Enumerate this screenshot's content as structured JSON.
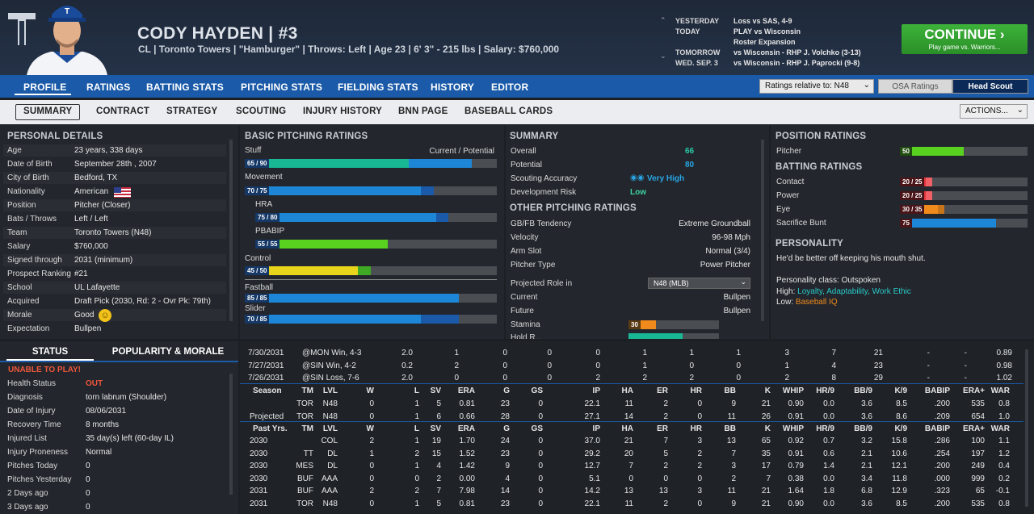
{
  "header": {
    "name": "CODY HAYDEN  |  #3",
    "info": "CL | Toronto Towers  |  \"Hamburger\" | Throws: Left  |  Age 23  |  6' 3\" - 215 lbs  |  Salary: $760,000",
    "schedule": [
      {
        "label": "YESTERDAY",
        "value": "Loss vs SAS, 4-9"
      },
      {
        "label": "TODAY",
        "value": "PLAY vs Wisconsin"
      },
      {
        "label": "",
        "value": "Roster Expansion"
      },
      {
        "label": "TOMORROW",
        "value": "vs Wisconsin - RHP J. Volchko (3-13)"
      },
      {
        "label": "WED. SEP. 3",
        "value": "vs Wisconsin - RHP J. Paprocki (9-8)"
      }
    ],
    "continue_label": "CONTINUE",
    "continue_sub": "Play game vs. Warriors..."
  },
  "tabs": [
    "PROFILE",
    "RATINGS",
    "BATTING STATS",
    "PITCHING STATS",
    "FIELDING STATS",
    "HISTORY",
    "EDITOR"
  ],
  "ratings_relative": "Ratings relative to: N48",
  "osa_ratings": "OSA Ratings",
  "head_scout": "Head Scout",
  "subtabs": [
    "SUMMARY",
    "CONTRACT",
    "STRATEGY",
    "SCOUTING",
    "INJURY HISTORY",
    "BNN PAGE",
    "BASEBALL CARDS"
  ],
  "actions": "ACTIONS...",
  "personal": {
    "title": "PERSONAL DETAILS",
    "rows": [
      [
        "Age",
        "23 years, 338 days"
      ],
      [
        "Date of Birth",
        "September 28th , 2007"
      ],
      [
        "City of Birth",
        "Bedford, TX"
      ],
      [
        "Nationality",
        "American"
      ],
      [
        "Position",
        "Pitcher (Closer)"
      ],
      [
        "Bats / Throws",
        "Left / Left"
      ],
      [
        "Team",
        "Toronto Towers (N48)"
      ],
      [
        "Salary",
        "$760,000"
      ],
      [
        "Signed through",
        "2031 (minimum)"
      ],
      [
        "Prospect Ranking",
        "#21"
      ],
      [
        "School",
        "UL Lafayette"
      ],
      [
        "Acquired",
        "Draft Pick (2030, Rd: 2 - Ovr Pk: 79th)"
      ],
      [
        "Morale",
        "Good"
      ],
      [
        "Expectation",
        "Bullpen"
      ]
    ]
  },
  "pitching": {
    "title": "BASIC PITCHING RATINGS",
    "current_potential": "Current / Potential",
    "items": [
      {
        "label": "Stuff",
        "text": "65 / 90",
        "cur": 65,
        "pot": 90,
        "color": "#18b894",
        "potcolor": "#1e86d6"
      },
      {
        "label": "Movement",
        "text": "70 / 75",
        "cur": 70,
        "pot": 75,
        "color": "#1e86d6",
        "potcolor": "#1a5aa8"
      },
      {
        "label": "HRA",
        "text": "75 / 80",
        "cur": 75,
        "pot": 80,
        "color": "#1e86d6",
        "potcolor": "#1a5aa8"
      },
      {
        "label": "PBABIP",
        "text": "55 / 55",
        "cur": 55,
        "pot": 55,
        "color": "#58d21e",
        "potcolor": "#58d21e"
      },
      {
        "label": "Control",
        "text": "45 / 50",
        "cur": 45,
        "pot": 50,
        "color": "#e8d41a",
        "potcolor": "#3fa824"
      },
      {
        "label": "Fastball",
        "text": "85 / 85",
        "cur": 85,
        "pot": 85,
        "color": "#1e86d6",
        "potcolor": "#1e86d6"
      },
      {
        "label": "Slider",
        "text": "70 / 85",
        "cur": 70,
        "pot": 85,
        "color": "#1e86d6",
        "potcolor": "#1a5aa8"
      }
    ]
  },
  "summary": {
    "title": "SUMMARY",
    "overall_label": "Overall",
    "overall": "66",
    "potential_label": "Potential",
    "potential": "80",
    "scout_label": "Scouting Accuracy",
    "scout": "Very High",
    "risk_label": "Development Risk",
    "risk": "Low",
    "other_title": "OTHER PITCHING RATINGS",
    "other": [
      [
        "GB/FB Tendency",
        "Extreme Groundball"
      ],
      [
        "Velocity",
        "96-98 Mph"
      ],
      [
        "Arm Slot",
        "Normal (3/4)"
      ],
      [
        "Pitcher Type",
        "Power Pitcher"
      ]
    ],
    "role_label": "Projected Role in",
    "role_select": "N48 (MLB)",
    "current_label": "Current",
    "current": "Bullpen",
    "future_label": "Future",
    "future": "Bullpen",
    "stamina_label": "Stamina",
    "stamina": "30",
    "stamina_val": 30,
    "hold_label": "Hold R..."
  },
  "position": {
    "title": "POSITION RATINGS",
    "pitcher_label": "Pitcher",
    "pitcher": "50",
    "pitcher_val": 50,
    "batting_title": "BATTING RATINGS",
    "batting": [
      {
        "label": "Contact",
        "text": "20 / 25",
        "cur": 20,
        "pot": 25,
        "color": "#e0343a",
        "potcolor": "#f06066"
      },
      {
        "label": "Power",
        "text": "20 / 25",
        "cur": 20,
        "pot": 25,
        "color": "#e0343a",
        "potcolor": "#f06066"
      },
      {
        "label": "Eye",
        "text": "30 / 35",
        "cur": 30,
        "pot": 35,
        "color": "#f08a1c",
        "potcolor": "#c77518"
      },
      {
        "label": "Sacrifice Bunt",
        "text": "75",
        "cur": 75,
        "pot": 75,
        "color": "#1e86d6",
        "potcolor": "#1e86d6"
      }
    ],
    "personality_title": "PERSONALITY",
    "quote": "He'd be better off keeping his mouth shut.",
    "class_line": "Personality class: Outspoken",
    "high_label": "High:",
    "high_values": [
      "Loyalty",
      "Adaptability",
      "Work Ethic"
    ],
    "low_label": "Low:",
    "low_value": "Baseball IQ"
  },
  "status": {
    "tab_status": "STATUS",
    "tab_pop": "POPULARITY & MORALE",
    "unable": "UNABLE TO PLAY!",
    "rows": [
      [
        "Health Status",
        "OUT"
      ],
      [
        "Diagnosis",
        "torn labrum (Shoulder)"
      ],
      [
        "Date of Injury",
        "08/06/2031"
      ],
      [
        "Recovery Time",
        "8 months"
      ],
      [
        "Injured List",
        "35 day(s) left (60-day IL)"
      ],
      [
        "Injury Proneness",
        "Normal"
      ],
      [
        "Pitches Today",
        "0"
      ],
      [
        "Pitches Yesterday",
        "0"
      ],
      [
        "2 Days ago",
        "0"
      ],
      [
        "3 Days ago",
        "0"
      ]
    ]
  },
  "stats": {
    "game_log": [
      [
        "7/30/2031",
        "@MON Win, 4-3",
        "2.0",
        "1",
        "0",
        "0",
        "0",
        "1",
        "1",
        "1",
        "3",
        "7",
        "21",
        "-",
        "-",
        "0.89"
      ],
      [
        "7/27/2031",
        "@SIN Win, 4-2",
        "0.2",
        "2",
        "0",
        "0",
        "0",
        "1",
        "0",
        "0",
        "1",
        "4",
        "23",
        "-",
        "-",
        "0.98"
      ],
      [
        "7/26/2031",
        "@SIN Loss, 7-6",
        "2.0",
        "0",
        "0",
        "0",
        "2",
        "2",
        "2",
        "0",
        "2",
        "8",
        "29",
        "-",
        "-",
        "1.02"
      ]
    ],
    "cols": [
      "TM",
      "LVL",
      "W",
      "L",
      "SV",
      "ERA",
      "G",
      "GS",
      "IP",
      "HA",
      "ER",
      "HR",
      "BB",
      "K",
      "WHIP",
      "HR/9",
      "BB/9",
      "K/9",
      "BABIP",
      "ERA+",
      "WAR"
    ],
    "season_label": "Season",
    "season_rows": [
      {
        "label": "",
        "vals": [
          "TOR",
          "N48",
          "0",
          "1",
          "5",
          "0.81",
          "23",
          "0",
          "22.1",
          "11",
          "2",
          "0",
          "9",
          "21",
          "0.90",
          "0.0",
          "3.6",
          "8.5",
          ".200",
          "535",
          "0.8"
        ]
      },
      {
        "label": "Projected",
        "vals": [
          "TOR",
          "N48",
          "0",
          "1",
          "6",
          "0.66",
          "28",
          "0",
          "27.1",
          "14",
          "2",
          "0",
          "11",
          "26",
          "0.91",
          "0.0",
          "3.6",
          "8.6",
          ".209",
          "654",
          "1.0"
        ]
      }
    ],
    "past_label": "Past Yrs.",
    "past_rows": [
      {
        "label": "2030",
        "vals": [
          "",
          "COL",
          "2",
          "1",
          "19",
          "1.70",
          "24",
          "0",
          "37.0",
          "21",
          "7",
          "3",
          "13",
          "65",
          "0.92",
          "0.7",
          "3.2",
          "15.8",
          ".286",
          "100",
          "1.1"
        ]
      },
      {
        "label": "2030",
        "vals": [
          "TT",
          "DL",
          "1",
          "2",
          "15",
          "1.52",
          "23",
          "0",
          "29.2",
          "20",
          "5",
          "2",
          "7",
          "35",
          "0.91",
          "0.6",
          "2.1",
          "10.6",
          ".254",
          "197",
          "1.2"
        ]
      },
      {
        "label": "2030",
        "vals": [
          "MES",
          "DL",
          "0",
          "1",
          "4",
          "1.42",
          "9",
          "0",
          "12.7",
          "7",
          "2",
          "2",
          "3",
          "17",
          "0.79",
          "1.4",
          "2.1",
          "12.1",
          ".200",
          "249",
          "0.4"
        ]
      },
      {
        "label": "2030",
        "vals": [
          "BUF",
          "AAA",
          "0",
          "0",
          "2",
          "0.00",
          "4",
          "0",
          "5.1",
          "0",
          "0",
          "0",
          "2",
          "7",
          "0.38",
          "0.0",
          "3.4",
          "11.8",
          ".000",
          "999",
          "0.2"
        ]
      },
      {
        "label": "2031",
        "vals": [
          "BUF",
          "AAA",
          "2",
          "2",
          "7",
          "7.98",
          "14",
          "0",
          "14.2",
          "13",
          "13",
          "3",
          "11",
          "21",
          "1.64",
          "1.8",
          "6.8",
          "12.9",
          ".323",
          "65",
          "-0.1"
        ]
      },
      {
        "label": "2031",
        "vals": [
          "TOR",
          "N48",
          "0",
          "1",
          "5",
          "0.81",
          "23",
          "0",
          "22.1",
          "11",
          "2",
          "0",
          "9",
          "21",
          "0.90",
          "0.0",
          "3.6",
          "8.5",
          ".200",
          "535",
          "0.8"
        ]
      }
    ]
  }
}
